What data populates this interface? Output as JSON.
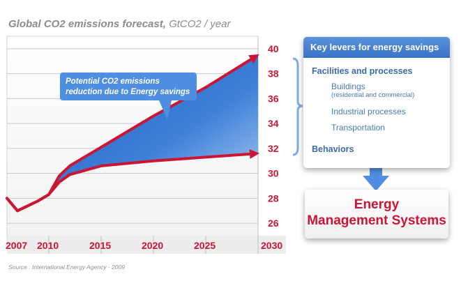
{
  "title": {
    "main": "Global CO2 emissions forecast,",
    "unit": "GtCO2 / year"
  },
  "source": "Source : International Energy Agency - 2009",
  "callout": {
    "line1": "Potential CO2 emissions",
    "line2": "reduction due to Energy savings"
  },
  "levers": {
    "header": "Key levers for energy savings",
    "facilities_heading": "Facilities and processes",
    "buildings": "Buildings",
    "buildings_note": "(residential and commercial)",
    "industrial": "Industrial processes",
    "transportation": "Transportation",
    "behaviors_heading": "Behaviors"
  },
  "result": {
    "line1": "Energy",
    "line2": "Management Systems"
  },
  "colors": {
    "line": "#cc1433",
    "area": "#3f7fd4",
    "callout": "#4f8ee0",
    "axis_text": "#cc1433",
    "grid": "#c8c8c8"
  },
  "chart_data": {
    "type": "area",
    "title": "Global CO2 emissions forecast, GtCO2 / year",
    "xlabel": "",
    "ylabel": "",
    "x_ticks": [
      2007,
      2010,
      2015,
      2020,
      2025,
      2030
    ],
    "y_ticks": [
      26,
      28,
      30,
      32,
      34,
      36,
      38,
      40
    ],
    "xlim": [
      2007,
      2030
    ],
    "ylim": [
      25,
      41
    ],
    "grid": true,
    "series": [
      {
        "role": "upper",
        "x": [
          2006,
          2007,
          2009,
          2010,
          2011,
          2012,
          2015,
          2020,
          2025,
          2030
        ],
        "y": [
          28.0,
          27.0,
          27.8,
          28.3,
          29.8,
          30.6,
          32.1,
          34.6,
          36.9,
          39.5
        ]
      },
      {
        "role": "lower",
        "x": [
          2006,
          2007,
          2009,
          2010,
          2011,
          2012,
          2015,
          2020,
          2025,
          2030
        ],
        "y": [
          28.0,
          27.0,
          27.8,
          28.3,
          29.3,
          29.9,
          30.6,
          31.0,
          31.3,
          31.6
        ]
      }
    ]
  }
}
